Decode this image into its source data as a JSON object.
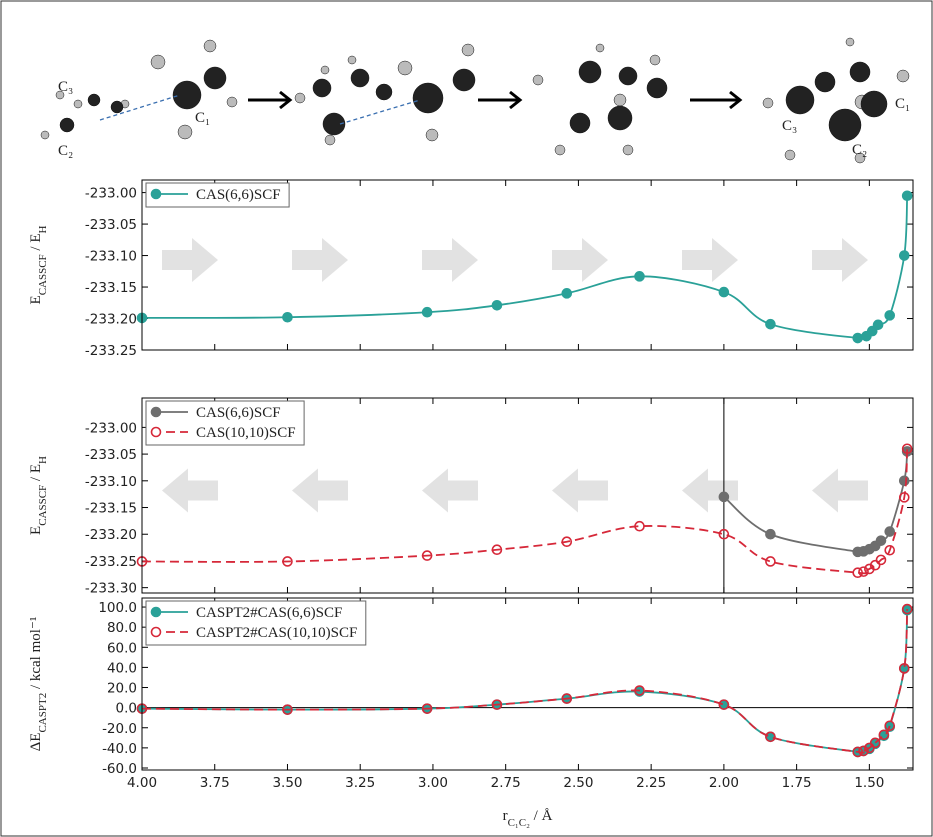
{
  "molecule_labels": [
    "C₃",
    "C₂",
    "C₁",
    "C₁",
    "C₃",
    "C₂"
  ],
  "chart_data": [
    {
      "type": "line",
      "legend": "upper left",
      "ylabel": [
        "E",
        "CASSCF",
        " / E",
        "H"
      ],
      "xlim": [
        4.0,
        1.35
      ],
      "xticks": [
        4.0,
        3.75,
        3.5,
        3.25,
        3.0,
        2.75,
        2.5,
        2.25,
        2.0,
        1.75,
        1.5
      ],
      "ylim": [
        -233.25,
        -232.98
      ],
      "yticks": [
        {
          "value": -233.0,
          "label": "-233.00"
        },
        {
          "value": -233.05,
          "label": "-233.05"
        },
        {
          "value": -233.1,
          "label": "-233.10"
        },
        {
          "value": -233.15,
          "label": "-233.15"
        },
        {
          "value": -233.2,
          "label": "-233.20"
        },
        {
          "value": -233.25,
          "label": "-233.25"
        }
      ],
      "x": [
        4.0,
        3.5,
        3.02,
        2.78,
        2.54,
        2.29,
        2.0,
        1.84,
        1.54,
        1.51,
        1.49,
        1.47,
        1.43,
        1.38,
        1.37
      ],
      "series": [
        {
          "name": "CAS(6,6)SCF",
          "color": "#2aa198",
          "marker": "filled",
          "dashed": false,
          "values": [
            -233.199,
            -233.198,
            -233.19,
            -233.179,
            -233.16,
            -233.133,
            -233.158,
            -233.209,
            -233.231,
            -233.228,
            -233.22,
            -233.21,
            -233.195,
            -233.1,
            -233.005
          ]
        }
      ]
    },
    {
      "type": "line",
      "legend": "upper left",
      "ylabel": [
        "E",
        "CASSCF",
        " / E",
        "H"
      ],
      "xlim": [
        4.0,
        1.35
      ],
      "xticks": [
        4.0,
        3.75,
        3.5,
        3.25,
        3.0,
        2.75,
        2.5,
        2.25,
        2.0,
        1.75,
        1.5
      ],
      "ylim": [
        -233.31,
        -232.945
      ],
      "yticks": [
        {
          "value": -233.0,
          "label": "-233.00"
        },
        {
          "value": -233.05,
          "label": "-233.05"
        },
        {
          "value": -233.1,
          "label": "-233.10"
        },
        {
          "value": -233.15,
          "label": "-233.15"
        },
        {
          "value": -233.2,
          "label": "-233.20"
        },
        {
          "value": -233.25,
          "label": "-233.25"
        },
        {
          "value": -233.3,
          "label": "-233.30"
        }
      ],
      "vline": 2.0,
      "x": [
        4.0,
        3.5,
        3.02,
        2.78,
        2.54,
        2.29,
        2.0,
        1.84,
        1.54,
        1.52,
        1.5,
        1.48,
        1.46,
        1.43,
        1.38,
        1.37
      ],
      "series": [
        {
          "name": "CAS(6,6)SCF",
          "color": "#6e6e6e",
          "marker": "filled",
          "dashed": false,
          "values": [
            null,
            null,
            null,
            null,
            null,
            null,
            -233.13,
            -233.2,
            -233.233,
            -233.232,
            -233.228,
            -233.222,
            -233.212,
            -233.195,
            -233.1,
            -233.045
          ]
        },
        {
          "name": "CAS(10,10)SCF",
          "color": "#d62839",
          "marker": "open",
          "dashed": true,
          "values": [
            -233.251,
            -233.251,
            -233.24,
            -233.229,
            -233.214,
            -233.185,
            -233.2,
            -233.251,
            -233.272,
            -233.27,
            -233.265,
            -233.258,
            -233.248,
            -233.23,
            -233.131,
            -233.04
          ]
        }
      ]
    },
    {
      "type": "line",
      "legend": "upper left",
      "ylabel": [
        "ΔE",
        "CASPT2",
        " / kcal mol⁻¹"
      ],
      "xlabel": [
        "r",
        "C₁C₂",
        " / Å"
      ],
      "xlim": [
        4.0,
        1.35
      ],
      "xticks": [
        {
          "value": 4.0,
          "label": "4.00"
        },
        {
          "value": 3.75,
          "label": "3.75"
        },
        {
          "value": 3.5,
          "label": "3.50"
        },
        {
          "value": 3.25,
          "label": "3.25"
        },
        {
          "value": 3.0,
          "label": "3.00"
        },
        {
          "value": 2.75,
          "label": "2.75"
        },
        {
          "value": 2.5,
          "label": "2.50"
        },
        {
          "value": 2.25,
          "label": "2.25"
        },
        {
          "value": 2.0,
          "label": "2.00"
        },
        {
          "value": 1.75,
          "label": "1.75"
        },
        {
          "value": 1.5,
          "label": "1.50"
        }
      ],
      "ylim": [
        -62,
        109
      ],
      "yticks": [
        {
          "value": 100,
          "label": "100.0"
        },
        {
          "value": 80,
          "label": "80.0"
        },
        {
          "value": 60,
          "label": "60.0"
        },
        {
          "value": 40,
          "label": "40.0"
        },
        {
          "value": 20,
          "label": "20.0"
        },
        {
          "value": 0,
          "label": "0.0"
        },
        {
          "value": -20,
          "label": "-20.0"
        },
        {
          "value": -40,
          "label": "-40.0"
        },
        {
          "value": -60,
          "label": "-60.0"
        }
      ],
      "hline": 0,
      "x": [
        4.0,
        3.5,
        3.02,
        2.78,
        2.54,
        2.29,
        2.0,
        1.84,
        1.54,
        1.52,
        1.5,
        1.48,
        1.45,
        1.43,
        1.38,
        1.37
      ],
      "series": [
        {
          "name": "CASPT2#CAS(6,6)SCF",
          "color": "#2aa198",
          "marker": "filled",
          "dashed": false,
          "values": [
            -1,
            -2,
            -1,
            3,
            9,
            16,
            3,
            -29,
            -44,
            -43,
            -41,
            -36,
            -28,
            -19,
            39,
            97
          ]
        },
        {
          "name": "CASPT2#CAS(10,10)SCF",
          "color": "#d62839",
          "marker": "open",
          "dashed": true,
          "values": [
            -1,
            -2,
            -1,
            3,
            9,
            17,
            3,
            -29,
            -44,
            -43,
            -40,
            -35,
            -27,
            -18,
            39,
            98
          ]
        }
      ]
    }
  ]
}
